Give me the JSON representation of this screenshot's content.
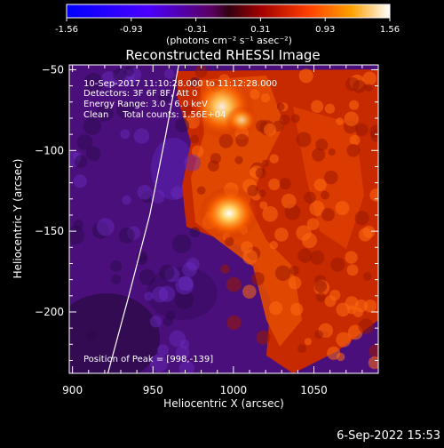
{
  "colorbar": {
    "ticks": [
      "-1.56",
      "-0.93",
      "-0.31",
      "0.31",
      "0.93",
      "1.56"
    ],
    "unit_label": "(photons cm⁻² s⁻¹ asec⁻²)",
    "range": [
      -1.56,
      1.56
    ]
  },
  "title": "Reconstructed RHESSI Image",
  "info": {
    "time": "10-Sep-2017 11:10:28.000 to 11:12:28.000",
    "detectors": "Detectors: 3F 6F 8F, Att 0",
    "energy": "Energy Range: 3.0 - 6.0 keV",
    "clean": "Clean     Total counts: 1.56E+04",
    "peak": "Position of Peak = [998,-139]"
  },
  "footer_date": "6-Sep-2022 15:53",
  "chart_data": {
    "type": "heatmap",
    "title": "Reconstructed RHESSI Image",
    "xlabel": "Heliocentric X (arcsec)",
    "ylabel": "Heliocentric Y (arcsec)",
    "xlim": [
      898,
      1090
    ],
    "ylim": [
      -238,
      -47
    ],
    "xticks": [
      900,
      950,
      1000,
      1050
    ],
    "yticks": [
      -50,
      -100,
      -150,
      -200
    ],
    "peak": [
      998,
      -139
    ],
    "sources": [
      {
        "x": 998,
        "y": -138,
        "value": 1.56
      },
      {
        "x": 995,
        "y": -63,
        "value": 1.2
      },
      {
        "x": 1008,
        "y": -75,
        "value": 0.9
      }
    ],
    "limb_curve": [
      [
        922,
        -238
      ],
      [
        935,
        -190
      ],
      [
        948,
        -140
      ],
      [
        958,
        -90
      ],
      [
        966,
        -47
      ]
    ],
    "colormap": [
      "#0000ff",
      "#7a00d0",
      "#c02c00",
      "#ff9000",
      "#ffffff"
    ]
  }
}
